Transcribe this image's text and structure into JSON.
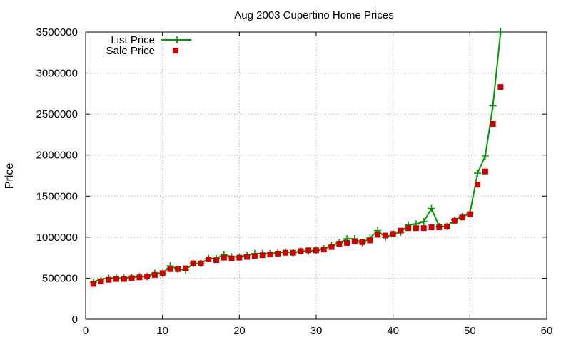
{
  "chart_data": {
    "type": "line",
    "title": "Aug 2003 Cupertino Home Prices",
    "xlabel": "",
    "ylabel": "Price",
    "xlim": [
      0,
      60
    ],
    "ylim": [
      0,
      3500000
    ],
    "xticks": [
      0,
      10,
      20,
      30,
      40,
      50,
      60
    ],
    "yticks": [
      0,
      500000,
      1000000,
      1500000,
      2000000,
      2500000,
      3000000,
      3500000
    ],
    "grid": true,
    "legend_position": "top-left",
    "series": [
      {
        "name": "List Price",
        "style": "line+plus",
        "color": "#009900",
        "x": [
          1,
          2,
          3,
          4,
          5,
          6,
          7,
          8,
          9,
          10,
          11,
          12,
          13,
          14,
          15,
          16,
          17,
          18,
          19,
          20,
          21,
          22,
          23,
          24,
          25,
          26,
          27,
          28,
          29,
          30,
          31,
          32,
          33,
          34,
          35,
          36,
          37,
          38,
          39,
          40,
          41,
          42,
          43,
          44,
          45,
          46,
          47,
          48,
          49,
          50,
          51,
          52,
          53,
          54
        ],
        "y": [
          450000,
          490000,
          500000,
          500000,
          500000,
          510000,
          520000,
          520000,
          560000,
          560000,
          650000,
          610000,
          600000,
          680000,
          680000,
          740000,
          740000,
          790000,
          760000,
          760000,
          780000,
          800000,
          800000,
          800000,
          810000,
          820000,
          810000,
          830000,
          830000,
          840000,
          860000,
          900000,
          930000,
          980000,
          980000,
          930000,
          990000,
          1080000,
          1000000,
          1040000,
          1060000,
          1150000,
          1160000,
          1190000,
          1350000,
          1130000,
          1130000,
          1210000,
          1250000,
          1290000,
          1780000,
          1990000,
          2600000,
          3500000
        ]
      },
      {
        "name": "Sale Price",
        "style": "square",
        "color": "#cc0000",
        "x": [
          1,
          2,
          3,
          4,
          5,
          6,
          7,
          8,
          9,
          10,
          11,
          12,
          13,
          14,
          15,
          16,
          17,
          18,
          19,
          20,
          21,
          22,
          23,
          24,
          25,
          26,
          27,
          28,
          29,
          30,
          31,
          32,
          33,
          34,
          35,
          36,
          37,
          38,
          39,
          40,
          41,
          42,
          43,
          44,
          45,
          46,
          47,
          48,
          49,
          50,
          51,
          52,
          53,
          54
        ],
        "y": [
          430000,
          460000,
          480000,
          490000,
          490000,
          500000,
          510000,
          520000,
          540000,
          560000,
          610000,
          610000,
          620000,
          680000,
          680000,
          730000,
          720000,
          750000,
          740000,
          750000,
          760000,
          770000,
          780000,
          790000,
          800000,
          810000,
          810000,
          830000,
          840000,
          840000,
          850000,
          880000,
          920000,
          930000,
          950000,
          940000,
          960000,
          1030000,
          1020000,
          1040000,
          1080000,
          1110000,
          1110000,
          1110000,
          1120000,
          1120000,
          1130000,
          1200000,
          1240000,
          1280000,
          1640000,
          1800000,
          2380000,
          2830000
        ]
      }
    ]
  }
}
